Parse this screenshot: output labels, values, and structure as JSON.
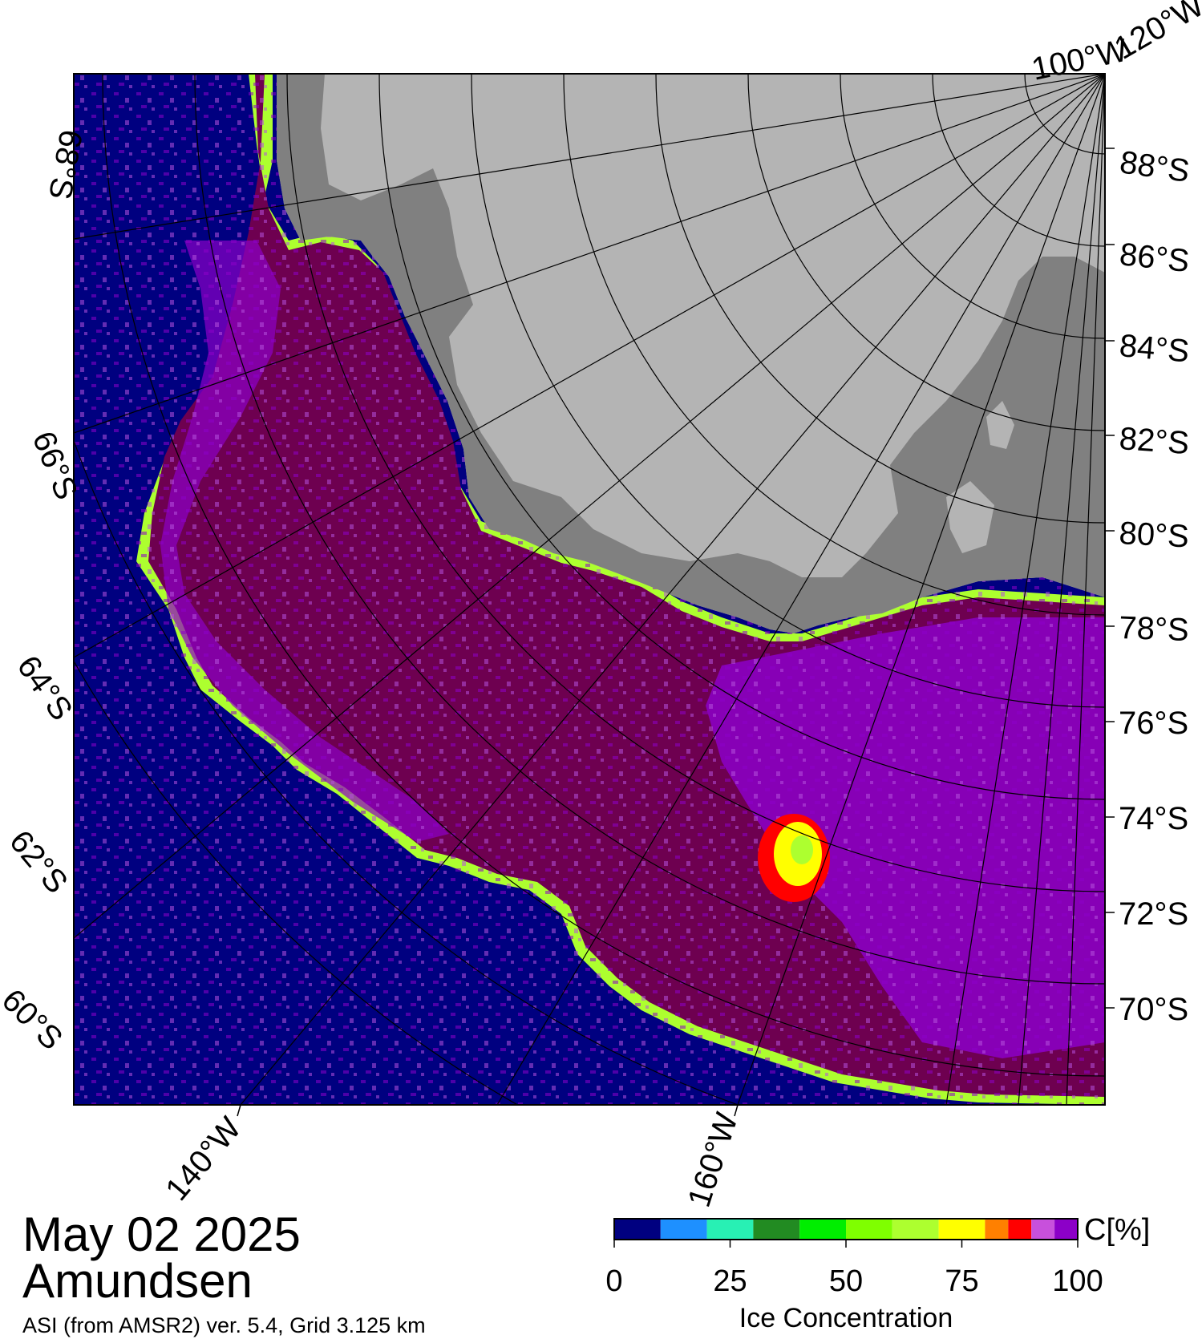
{
  "map": {
    "date": "May 02 2025",
    "region": "Amundsen",
    "source": "ASI (from AMSR2) ver. 5.4,  Grid 3.125 km",
    "latitude_labels_right": [
      "88°S",
      "86°S",
      "84°S",
      "82°S",
      "80°S",
      "78°S",
      "76°S",
      "74°S",
      "72°S",
      "70°S"
    ],
    "latitude_labels_left": [
      "68°S",
      "66°S",
      "64°S",
      "62°S",
      "60°S"
    ],
    "longitude_labels": [
      "140°W",
      "160°W",
      "100°W",
      "120°W"
    ],
    "colors": {
      "ocean": "#000080",
      "land_ice_shelf": "#b4b4b4",
      "land_dark": "#808080",
      "sea_ice_full": "#6e0050",
      "sea_ice_purple": "#8c00c8",
      "sea_ice_light_purple": "#b450dc"
    }
  },
  "colorbar": {
    "label": "Ice Concentration",
    "unit_label": "C[%]",
    "tick_labels": [
      "0",
      "25",
      "50",
      "75",
      "100"
    ],
    "bins": [
      {
        "min": 0,
        "max": 10,
        "color": "#000080"
      },
      {
        "min": 10,
        "max": 20,
        "color": "#1e90ff"
      },
      {
        "min": 20,
        "max": 30,
        "color": "#28f0b4"
      },
      {
        "min": 30,
        "max": 40,
        "color": "#228b22"
      },
      {
        "min": 40,
        "max": 50,
        "color": "#00ee00"
      },
      {
        "min": 50,
        "max": 60,
        "color": "#7fff00"
      },
      {
        "min": 60,
        "max": 70,
        "color": "#adff2f"
      },
      {
        "min": 70,
        "max": 80,
        "color": "#ffff00"
      },
      {
        "min": 80,
        "max": 85,
        "color": "#ff8000"
      },
      {
        "min": 85,
        "max": 90,
        "color": "#ff0000"
      },
      {
        "min": 90,
        "max": 95,
        "color": "#c850dc"
      },
      {
        "min": 95,
        "max": 100,
        "color": "#8c00c8"
      }
    ]
  }
}
